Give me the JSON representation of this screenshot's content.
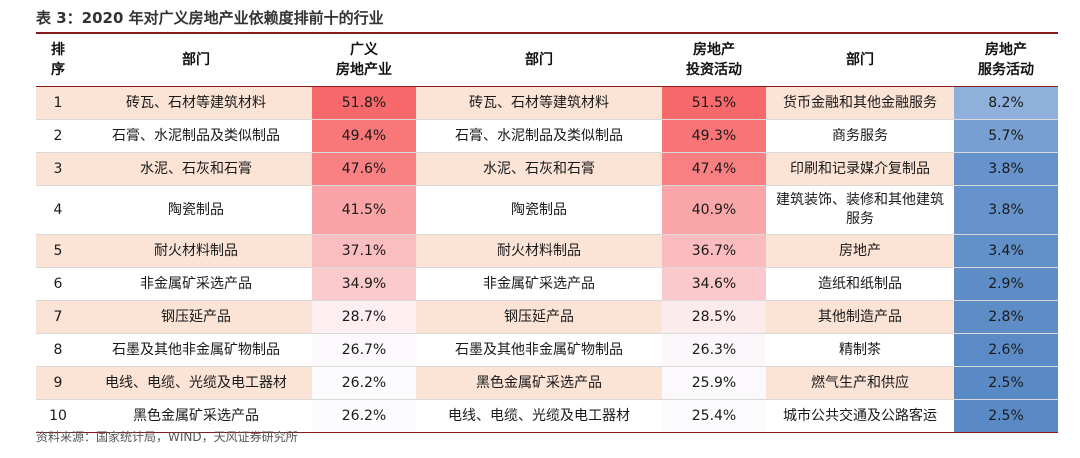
{
  "title": "表 3：2020 年对广义房地产业依赖度排前十的行业",
  "headers": {
    "rank": "排\n序",
    "dept1": "部门",
    "val1": "广义\n房地产业",
    "dept2": "部门",
    "val2": "房地产\n投资活动",
    "dept3": "部门",
    "val3": "房地产\n服务活动"
  },
  "rows": [
    {
      "rank": "1",
      "d1": "砖瓦、石材等建筑材料",
      "v1": "51.8%",
      "d2": "砖瓦、石材等建筑材料",
      "v2": "51.5%",
      "d3": "货币金融和其他金融服务",
      "v3": "8.2%"
    },
    {
      "rank": "2",
      "d1": "石膏、水泥制品及类似制品",
      "v1": "49.4%",
      "d2": "石膏、水泥制品及类似制品",
      "v2": "49.3%",
      "d3": "商务服务",
      "v3": "5.7%"
    },
    {
      "rank": "3",
      "d1": "水泥、石灰和石膏",
      "v1": "47.6%",
      "d2": "水泥、石灰和石膏",
      "v2": "47.4%",
      "d3": "印刷和记录媒介复制品",
      "v3": "3.8%"
    },
    {
      "rank": "4",
      "d1": "陶瓷制品",
      "v1": "41.5%",
      "d2": "陶瓷制品",
      "v2": "40.9%",
      "d3": "建筑装饰、装修和其他建筑服务",
      "v3": "3.8%"
    },
    {
      "rank": "5",
      "d1": "耐火材料制品",
      "v1": "37.1%",
      "d2": "耐火材料制品",
      "v2": "36.7%",
      "d3": "房地产",
      "v3": "3.4%"
    },
    {
      "rank": "6",
      "d1": "非金属矿采选产品",
      "v1": "34.9%",
      "d2": "非金属矿采选产品",
      "v2": "34.6%",
      "d3": "造纸和纸制品",
      "v3": "2.9%"
    },
    {
      "rank": "7",
      "d1": "钢压延产品",
      "v1": "28.7%",
      "d2": "钢压延产品",
      "v2": "28.5%",
      "d3": "其他制造产品",
      "v3": "2.8%"
    },
    {
      "rank": "8",
      "d1": "石墨及其他非金属矿物制品",
      "v1": "26.7%",
      "d2": "石墨及其他非金属矿物制品",
      "v2": "26.3%",
      "d3": "精制茶",
      "v3": "2.6%"
    },
    {
      "rank": "9",
      "d1": "电线、电缆、光缆及电工器材",
      "v1": "26.2%",
      "d2": "黑色金属矿采选产品",
      "v2": "25.9%",
      "d3": "燃气生产和供应",
      "v3": "2.5%"
    },
    {
      "rank": "10",
      "d1": "黑色金属矿采选产品",
      "v1": "26.2%",
      "d2": "电线、电缆、光缆及电工器材",
      "v2": "25.4%",
      "d3": "城市公共交通及公路客运",
      "v3": "2.5%"
    }
  ],
  "colors": {
    "red_high": "#f8696b",
    "red_low": "#fcfcff",
    "blue_high": "#5a8ac6",
    "blue_low": "#8fb0da"
  },
  "source": "资料来源：国家统计局，WIND，天风证券研究所"
}
